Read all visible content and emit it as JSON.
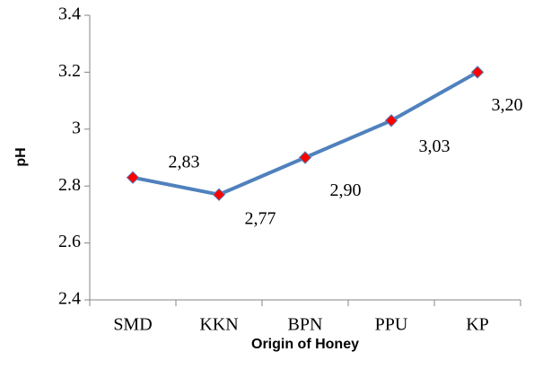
{
  "chart_data": {
    "type": "line",
    "x_label": "Origin of Honey",
    "y_label": "pH",
    "categories": [
      "SMD",
      "KKN",
      "BPN",
      "PPU",
      "KP"
    ],
    "series": [
      {
        "name": "pH",
        "color": "#4f81bd",
        "marker_color": "#ff0000",
        "values": [
          2.83,
          2.77,
          2.9,
          3.03,
          3.2
        ],
        "value_labels": [
          "2,83",
          "2,77",
          "2,90",
          "3,03",
          "3,20"
        ]
      }
    ],
    "ylim": [
      2.4,
      3.4
    ],
    "yticks": [
      2.4,
      2.6,
      2.8,
      3,
      3.2,
      3.4
    ],
    "grid": false
  }
}
